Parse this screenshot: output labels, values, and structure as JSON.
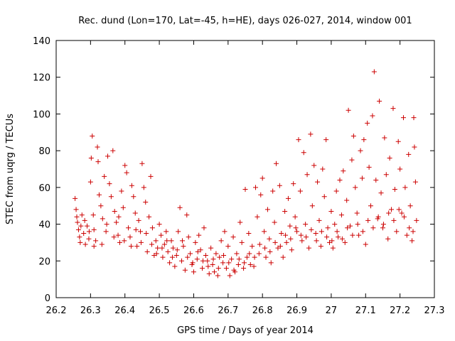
{
  "chart_data": {
    "type": "scatter",
    "title": "Rec. dund (Lon=170, Lat=-45, h=HE), days 026-027, 2014, window 001",
    "xlabel": "GPS time / Days of year 2014",
    "ylabel": "STEC from uqrg / TECUs",
    "xlim": [
      26.2,
      27.3
    ],
    "ylim": [
      0,
      140
    ],
    "xticks": [
      26.2,
      26.3,
      26.4,
      26.5,
      26.6,
      26.7,
      26.8,
      26.9,
      27.0,
      27.1,
      27.2,
      27.3
    ],
    "xtick_labels": [
      "26.2",
      "26.3",
      "26.4",
      "26.5",
      "26.6",
      "26.7",
      "26.8",
      "26.9",
      "27",
      "27.1",
      "27.2",
      "27.3"
    ],
    "yticks": [
      0,
      20,
      40,
      60,
      80,
      100,
      120,
      140
    ],
    "ytick_labels": [
      "0",
      "20",
      "40",
      "60",
      "80",
      "100",
      "120",
      "140"
    ],
    "marker": "+",
    "marker_color": "#cc0000",
    "grid": false,
    "points": [
      [
        26.255,
        54
      ],
      [
        26.258,
        48
      ],
      [
        26.262,
        41
      ],
      [
        26.265,
        37
      ],
      [
        26.268,
        33
      ],
      [
        26.27,
        30
      ],
      [
        26.275,
        45
      ],
      [
        26.28,
        35
      ],
      [
        26.285,
        29
      ],
      [
        26.29,
        39
      ],
      [
        26.295,
        32
      ],
      [
        26.3,
        63
      ],
      [
        26.302,
        76
      ],
      [
        26.305,
        88
      ],
      [
        26.308,
        45
      ],
      [
        26.31,
        37
      ],
      [
        26.315,
        31
      ],
      [
        26.32,
        82
      ],
      [
        26.322,
        74
      ],
      [
        26.325,
        56
      ],
      [
        26.33,
        50
      ],
      [
        26.335,
        43
      ],
      [
        26.34,
        66
      ],
      [
        26.345,
        36
      ],
      [
        26.35,
        77
      ],
      [
        26.355,
        62
      ],
      [
        26.36,
        55
      ],
      [
        26.365,
        80
      ],
      [
        26.37,
        47
      ],
      [
        26.375,
        41
      ],
      [
        26.38,
        34
      ],
      [
        26.385,
        30
      ],
      [
        26.39,
        58
      ],
      [
        26.395,
        49
      ],
      [
        26.4,
        72
      ],
      [
        26.405,
        68
      ],
      [
        26.41,
        38
      ],
      [
        26.415,
        33
      ],
      [
        26.42,
        61
      ],
      [
        26.425,
        55
      ],
      [
        26.43,
        46
      ],
      [
        26.435,
        28
      ],
      [
        26.44,
        42
      ],
      [
        26.445,
        36
      ],
      [
        26.45,
        73
      ],
      [
        26.455,
        60
      ],
      [
        26.46,
        52
      ],
      [
        26.465,
        25
      ],
      [
        26.47,
        44
      ],
      [
        26.475,
        66
      ],
      [
        26.48,
        38
      ],
      [
        26.485,
        23
      ],
      [
        26.49,
        31
      ],
      [
        26.495,
        27
      ],
      [
        26.5,
        40
      ],
      [
        26.505,
        34
      ],
      [
        26.51,
        22
      ],
      [
        26.515,
        29
      ],
      [
        26.52,
        36
      ],
      [
        26.525,
        25
      ],
      [
        26.53,
        19
      ],
      [
        26.535,
        31
      ],
      [
        26.54,
        27
      ],
      [
        26.545,
        17
      ],
      [
        26.55,
        23
      ],
      [
        26.555,
        36
      ],
      [
        26.56,
        49
      ],
      [
        26.565,
        20
      ],
      [
        26.57,
        28
      ],
      [
        26.575,
        15
      ],
      [
        26.58,
        45
      ],
      [
        26.585,
        33
      ],
      [
        26.59,
        24
      ],
      [
        26.595,
        18
      ],
      [
        26.6,
        14
      ],
      [
        26.605,
        30
      ],
      [
        26.61,
        21
      ],
      [
        26.615,
        34
      ],
      [
        26.62,
        26
      ],
      [
        26.625,
        16
      ],
      [
        26.63,
        38
      ],
      [
        26.635,
        23
      ],
      [
        26.64,
        20
      ],
      [
        26.645,
        13
      ],
      [
        26.65,
        27
      ],
      [
        26.655,
        18
      ],
      [
        26.66,
        14
      ],
      [
        26.665,
        24
      ],
      [
        26.67,
        12
      ],
      [
        26.675,
        22
      ],
      [
        26.68,
        31
      ],
      [
        26.685,
        19
      ],
      [
        26.69,
        36
      ],
      [
        26.695,
        16
      ],
      [
        26.7,
        28
      ],
      [
        26.705,
        12
      ],
      [
        26.71,
        21
      ],
      [
        26.715,
        33
      ],
      [
        26.72,
        14
      ],
      [
        26.725,
        24
      ],
      [
        26.73,
        18
      ],
      [
        26.735,
        41
      ],
      [
        26.74,
        30
      ],
      [
        26.745,
        16
      ],
      [
        26.75,
        59
      ],
      [
        26.755,
        22
      ],
      [
        26.76,
        35
      ],
      [
        26.765,
        18
      ],
      [
        26.77,
        28
      ],
      [
        26.775,
        17
      ],
      [
        26.78,
        60
      ],
      [
        26.785,
        44
      ],
      [
        26.79,
        24
      ],
      [
        26.795,
        56
      ],
      [
        26.8,
        65
      ],
      [
        26.805,
        36
      ],
      [
        26.81,
        22
      ],
      [
        26.815,
        48
      ],
      [
        26.82,
        32
      ],
      [
        26.825,
        19
      ],
      [
        26.83,
        58
      ],
      [
        26.835,
        41
      ],
      [
        26.84,
        73
      ],
      [
        26.845,
        27
      ],
      [
        26.85,
        61
      ],
      [
        26.855,
        35
      ],
      [
        26.86,
        22
      ],
      [
        26.865,
        47
      ],
      [
        26.87,
        30
      ],
      [
        26.875,
        54
      ],
      [
        26.88,
        39
      ],
      [
        26.885,
        26
      ],
      [
        26.89,
        62
      ],
      [
        26.895,
        44
      ],
      [
        26.9,
        36
      ],
      [
        26.905,
        86
      ],
      [
        26.91,
        58
      ],
      [
        26.915,
        31
      ],
      [
        26.92,
        79
      ],
      [
        26.925,
        40
      ],
      [
        26.93,
        67
      ],
      [
        26.935,
        27
      ],
      [
        26.94,
        89
      ],
      [
        26.945,
        50
      ],
      [
        26.95,
        72
      ],
      [
        26.955,
        35
      ],
      [
        26.96,
        63
      ],
      [
        26.965,
        42
      ],
      [
        26.97,
        28
      ],
      [
        26.975,
        70
      ],
      [
        26.98,
        55
      ],
      [
        26.985,
        86
      ],
      [
        26.99,
        38
      ],
      [
        26.995,
        30
      ],
      [
        27.0,
        47
      ],
      [
        27.005,
        27
      ],
      [
        27.01,
        40
      ],
      [
        27.015,
        58
      ],
      [
        27.02,
        33
      ],
      [
        27.025,
        64
      ],
      [
        27.03,
        45
      ],
      [
        27.035,
        69
      ],
      [
        27.04,
        30
      ],
      [
        27.045,
        53
      ],
      [
        27.05,
        102
      ],
      [
        27.055,
        39
      ],
      [
        27.06,
        75
      ],
      [
        27.065,
        88
      ],
      [
        27.07,
        60
      ],
      [
        27.075,
        46
      ],
      [
        27.08,
        34
      ],
      [
        27.085,
        80
      ],
      [
        27.09,
        65
      ],
      [
        27.095,
        86
      ],
      [
        27.1,
        29
      ],
      [
        27.105,
        95
      ],
      [
        27.11,
        71
      ],
      [
        27.115,
        50
      ],
      [
        27.12,
        99
      ],
      [
        27.125,
        123
      ],
      [
        27.13,
        64
      ],
      [
        27.135,
        43
      ],
      [
        27.14,
        107
      ],
      [
        27.145,
        57
      ],
      [
        27.15,
        38
      ],
      [
        27.155,
        87
      ],
      [
        27.16,
        67
      ],
      [
        27.165,
        32
      ],
      [
        27.17,
        76
      ],
      [
        27.175,
        48
      ],
      [
        27.18,
        103
      ],
      [
        27.185,
        59
      ],
      [
        27.19,
        36
      ],
      [
        27.195,
        85
      ],
      [
        27.2,
        70
      ],
      [
        27.205,
        46
      ],
      [
        27.21,
        98
      ],
      [
        27.215,
        60
      ],
      [
        27.22,
        34
      ],
      [
        27.225,
        78
      ],
      [
        27.23,
        50
      ],
      [
        27.235,
        31
      ],
      [
        27.24,
        98
      ],
      [
        27.242,
        82
      ],
      [
        27.245,
        63
      ],
      [
        27.248,
        42
      ],
      [
        26.26,
        44
      ],
      [
        26.272,
        39
      ],
      [
        26.283,
        42
      ],
      [
        26.296,
        36
      ],
      [
        26.31,
        28
      ],
      [
        26.333,
        29
      ],
      [
        26.347,
        40
      ],
      [
        26.368,
        33
      ],
      [
        26.382,
        44
      ],
      [
        26.398,
        31
      ],
      [
        26.418,
        28
      ],
      [
        26.432,
        37
      ],
      [
        26.447,
        30
      ],
      [
        26.462,
        35
      ],
      [
        26.478,
        29
      ],
      [
        26.492,
        24
      ],
      [
        26.508,
        27
      ],
      [
        26.522,
        31
      ],
      [
        26.538,
        22
      ],
      [
        26.552,
        26
      ],
      [
        26.567,
        31
      ],
      [
        26.582,
        22
      ],
      [
        26.597,
        19
      ],
      [
        26.612,
        25
      ],
      [
        26.627,
        20
      ],
      [
        26.642,
        17
      ],
      [
        26.657,
        21
      ],
      [
        26.672,
        16
      ],
      [
        26.687,
        23
      ],
      [
        26.702,
        19
      ],
      [
        26.717,
        15
      ],
      [
        26.732,
        21
      ],
      [
        26.747,
        19
      ],
      [
        26.762,
        24
      ],
      [
        26.777,
        22
      ],
      [
        26.792,
        29
      ],
      [
        26.807,
        27
      ],
      [
        26.822,
        25
      ],
      [
        26.837,
        30
      ],
      [
        26.852,
        28
      ],
      [
        26.867,
        34
      ],
      [
        26.882,
        32
      ],
      [
        26.897,
        38
      ],
      [
        26.912,
        34
      ],
      [
        26.927,
        33
      ],
      [
        26.942,
        37
      ],
      [
        26.957,
        31
      ],
      [
        26.972,
        36
      ],
      [
        26.987,
        33
      ],
      [
        27.002,
        31
      ],
      [
        27.017,
        36
      ],
      [
        27.032,
        32
      ],
      [
        27.047,
        38
      ],
      [
        27.062,
        34
      ],
      [
        27.077,
        40
      ],
      [
        27.092,
        36
      ],
      [
        27.107,
        42
      ],
      [
        27.122,
        38
      ],
      [
        27.137,
        44
      ],
      [
        27.152,
        40
      ],
      [
        27.167,
        46
      ],
      [
        27.182,
        42
      ],
      [
        27.197,
        48
      ],
      [
        27.212,
        44
      ],
      [
        27.227,
        38
      ],
      [
        27.238,
        36
      ]
    ]
  }
}
